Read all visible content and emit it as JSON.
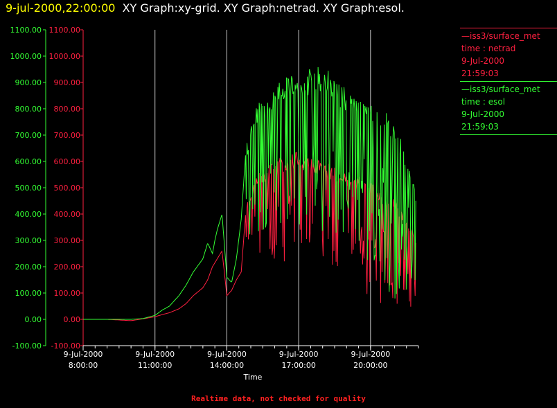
{
  "header": {
    "timestamp": "9-jul-2000,22:00:00",
    "graphs": "XY Graph:xy-grid.  XY Graph:netrad.  XY Graph:esol."
  },
  "colors": {
    "background": "#000000",
    "esol": "#33ff33",
    "netrad": "#ff2040",
    "grid": "#cccccc",
    "axis_text": "#ffffff",
    "timestamp": "#ffff00"
  },
  "legend": [
    {
      "station": "—iss3/surface_met",
      "var": "time : netrad",
      "date": "9-Jul-2000",
      "time": "21:59:03",
      "color": "#ff2040"
    },
    {
      "station": "—iss3/surface_met",
      "var": "time : esol",
      "date": "9-Jul-2000",
      "time": "21:59:03",
      "color": "#33ff33"
    }
  ],
  "footer": "Realtime data, not checked for quality",
  "chart_data": {
    "type": "line",
    "xlabel": "Time",
    "x_ticks": [
      {
        "hour": 8,
        "date": "9-Jul-2000",
        "time": "8:00:00"
      },
      {
        "hour": 11,
        "date": "9-Jul-2000",
        "time": "11:00:00"
      },
      {
        "hour": 14,
        "date": "9-Jul-2000",
        "time": "14:00:00"
      },
      {
        "hour": 17,
        "date": "9-Jul-2000",
        "time": "17:00:00"
      },
      {
        "hour": 20,
        "date": "9-Jul-2000",
        "time": "20:00:00"
      }
    ],
    "xlim": [
      8,
      22
    ],
    "ylim": [
      -100,
      1100
    ],
    "y_ticks": [
      -100,
      0,
      100,
      200,
      300,
      400,
      500,
      600,
      700,
      800,
      900,
      1000,
      1100
    ],
    "y_tick_labels": [
      "-100.00",
      "0.00",
      "100.00",
      "200.00",
      "300.00",
      "400.00",
      "500.00",
      "600.00",
      "700.00",
      "800.00",
      "900.00",
      "1000.00",
      "1100.00"
    ],
    "grid": "vertical lines at 11:00, 14:00, 17:00, 20:00",
    "series": [
      {
        "name": "esol",
        "hours": [
          8.0,
          9.0,
          10.0,
          10.5,
          11.0,
          11.3,
          11.6,
          12.0,
          12.3,
          12.6,
          13.0,
          13.2,
          13.4,
          13.5,
          13.6,
          13.8,
          14.0,
          14.2,
          14.4,
          14.6,
          14.8,
          15.0,
          15.3,
          15.6,
          16.0,
          16.3,
          16.6,
          17.0,
          17.3,
          17.6,
          18.0,
          18.3,
          18.6,
          19.0,
          19.3,
          19.6,
          20.0,
          20.3,
          20.6,
          21.0,
          21.3,
          21.6,
          21.9
        ],
        "values": [
          0,
          0,
          0,
          3,
          15,
          35,
          50,
          90,
          130,
          180,
          230,
          290,
          250,
          300,
          340,
          400,
          160,
          140,
          230,
          380,
          650,
          760,
          820,
          840,
          880,
          910,
          930,
          950,
          940,
          960,
          960,
          950,
          900,
          880,
          850,
          840,
          830,
          810,
          790,
          750,
          680,
          590,
          490
        ]
      },
      {
        "name": "netrad",
        "hours": [
          8.0,
          9.0,
          10.0,
          10.5,
          11.0,
          11.3,
          11.6,
          12.0,
          12.3,
          12.6,
          13.0,
          13.2,
          13.4,
          13.6,
          13.8,
          14.0,
          14.2,
          14.4,
          14.6,
          14.8,
          15.0,
          15.3,
          15.6,
          16.0,
          16.3,
          16.6,
          17.0,
          17.3,
          17.6,
          18.0,
          18.3,
          18.6,
          19.0,
          19.3,
          19.6,
          20.0,
          20.3,
          20.6,
          21.0,
          21.3,
          21.6,
          21.9
        ],
        "values": [
          0,
          0,
          -5,
          2,
          10,
          18,
          25,
          40,
          60,
          90,
          120,
          150,
          200,
          230,
          260,
          90,
          110,
          150,
          180,
          420,
          500,
          560,
          580,
          600,
          620,
          630,
          640,
          630,
          620,
          600,
          590,
          570,
          560,
          550,
          540,
          520,
          500,
          480,
          460,
          420,
          380,
          300
        ]
      }
    ]
  }
}
